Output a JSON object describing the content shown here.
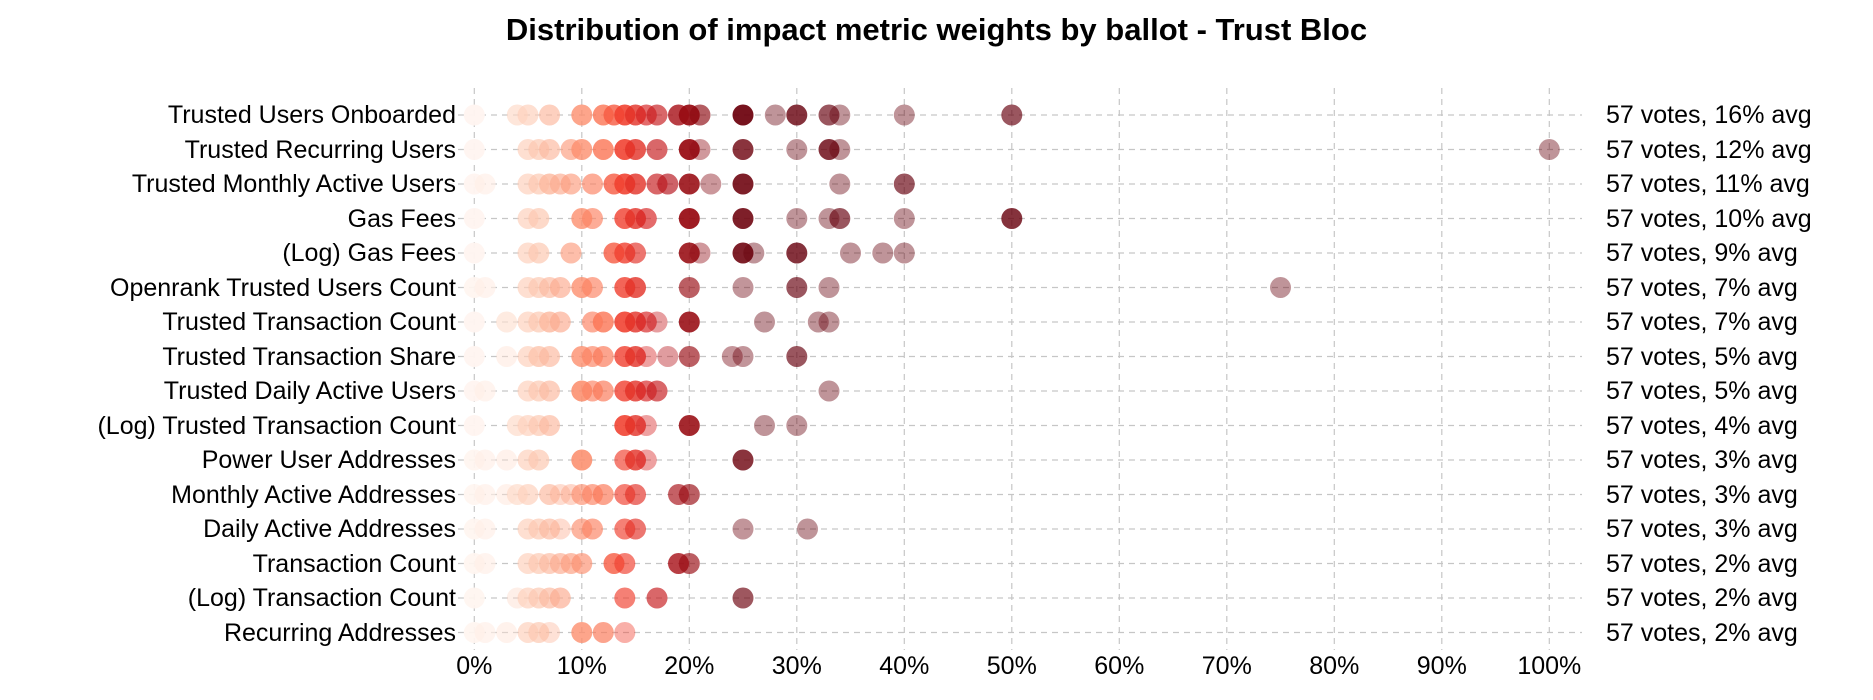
{
  "title": "Distribution of impact metric weights by ballot - Trust Bloc",
  "colors": {
    "background": "#ffffff",
    "grid": "#c6c6c6",
    "text": "#000000",
    "colormap_stops": [
      [
        0,
        "#fff5f0"
      ],
      [
        2,
        "#fee8dd"
      ],
      [
        4,
        "#fdd9c7"
      ],
      [
        6,
        "#fcc5ad"
      ],
      [
        8,
        "#fcab8f"
      ],
      [
        10,
        "#fc8f6f"
      ],
      [
        12,
        "#fb7555"
      ],
      [
        14,
        "#f0402f"
      ],
      [
        16,
        "#d6201f"
      ],
      [
        18,
        "#b5121b"
      ],
      [
        20,
        "#980c13"
      ],
      [
        23,
        "#7a0510"
      ],
      [
        26,
        "#67000d"
      ]
    ],
    "dot_base_alpha": 0.42
  },
  "chart_data": {
    "type": "scatter",
    "title": "Distribution of impact metric weights by ballot - Trust Bloc",
    "xlabel": "",
    "ylabel": "",
    "x_range": [
      0,
      100
    ],
    "x_tick_labels": [
      "0%",
      "10%",
      "20%",
      "30%",
      "40%",
      "50%",
      "60%",
      "70%",
      "80%",
      "90%",
      "100%"
    ],
    "x_tick_values": [
      0,
      10,
      20,
      30,
      40,
      50,
      60,
      70,
      80,
      90,
      100
    ],
    "grid": "dashed-both-axes",
    "legend_position": "none",
    "marker": "circle, color mapped to weight value (Reds), semi-transparent, overlapping stacks darken",
    "rows": [
      {
        "label": "Trusted Users Onboarded",
        "votes": 57,
        "avg_pct": 16,
        "annotation": "57 votes, 16% avg",
        "dots": [
          [
            0,
            6
          ],
          [
            4,
            2
          ],
          [
            5,
            2
          ],
          [
            7,
            2
          ],
          [
            10,
            3
          ],
          [
            12,
            3
          ],
          [
            13,
            3
          ],
          [
            14,
            4
          ],
          [
            15,
            3
          ],
          [
            16,
            2
          ],
          [
            17,
            2
          ],
          [
            19,
            3
          ],
          [
            20,
            5
          ],
          [
            21,
            2
          ],
          [
            25,
            5
          ],
          [
            28,
            1
          ],
          [
            30,
            3
          ],
          [
            33,
            2
          ],
          [
            34,
            1
          ],
          [
            40,
            1
          ],
          [
            50,
            2
          ]
        ]
      },
      {
        "label": "Trusted Recurring Users",
        "votes": 57,
        "avg_pct": 12,
        "annotation": "57 votes, 12% avg",
        "dots": [
          [
            0,
            6
          ],
          [
            5,
            2
          ],
          [
            6,
            2
          ],
          [
            7,
            2
          ],
          [
            9,
            2
          ],
          [
            10,
            3
          ],
          [
            12,
            3
          ],
          [
            14,
            4
          ],
          [
            15,
            3
          ],
          [
            17,
            2
          ],
          [
            20,
            5
          ],
          [
            21,
            1
          ],
          [
            25,
            3
          ],
          [
            30,
            1
          ],
          [
            33,
            3
          ],
          [
            34,
            1
          ],
          [
            100,
            1
          ]
        ]
      },
      {
        "label": "Trusted Monthly Active Users",
        "votes": 57,
        "avg_pct": 11,
        "annotation": "57 votes, 11% avg",
        "dots": [
          [
            0,
            6
          ],
          [
            1,
            2
          ],
          [
            5,
            2
          ],
          [
            6,
            2
          ],
          [
            7,
            3
          ],
          [
            8,
            2
          ],
          [
            9,
            2
          ],
          [
            11,
            2
          ],
          [
            13,
            3
          ],
          [
            14,
            4
          ],
          [
            15,
            3
          ],
          [
            17,
            2
          ],
          [
            18,
            2
          ],
          [
            20,
            4
          ],
          [
            22,
            1
          ],
          [
            25,
            4
          ],
          [
            34,
            1
          ],
          [
            40,
            2
          ]
        ]
      },
      {
        "label": "Gas Fees",
        "votes": 57,
        "avg_pct": 10,
        "annotation": "57 votes, 10% avg",
        "dots": [
          [
            0,
            6
          ],
          [
            5,
            2
          ],
          [
            6,
            2
          ],
          [
            10,
            3
          ],
          [
            11,
            2
          ],
          [
            14,
            3
          ],
          [
            15,
            3
          ],
          [
            16,
            2
          ],
          [
            20,
            5
          ],
          [
            25,
            4
          ],
          [
            30,
            1
          ],
          [
            33,
            1
          ],
          [
            34,
            2
          ],
          [
            40,
            1
          ],
          [
            50,
            3
          ]
        ]
      },
      {
        "label": "(Log) Gas Fees",
        "votes": 57,
        "avg_pct": 9,
        "annotation": "57 votes, 9% avg",
        "dots": [
          [
            0,
            6
          ],
          [
            5,
            2
          ],
          [
            6,
            2
          ],
          [
            9,
            2
          ],
          [
            13,
            3
          ],
          [
            14,
            3
          ],
          [
            15,
            2
          ],
          [
            20,
            4
          ],
          [
            21,
            1
          ],
          [
            25,
            4
          ],
          [
            26,
            1
          ],
          [
            30,
            3
          ],
          [
            35,
            1
          ],
          [
            38,
            1
          ],
          [
            40,
            1
          ]
        ]
      },
      {
        "label": "Openrank Trusted Users Count",
        "votes": 57,
        "avg_pct": 7,
        "annotation": "57 votes, 7% avg",
        "dots": [
          [
            0,
            5
          ],
          [
            1,
            2
          ],
          [
            5,
            2
          ],
          [
            6,
            2
          ],
          [
            7,
            2
          ],
          [
            8,
            2
          ],
          [
            10,
            3
          ],
          [
            11,
            2
          ],
          [
            14,
            3
          ],
          [
            15,
            3
          ],
          [
            20,
            2
          ],
          [
            25,
            1
          ],
          [
            30,
            2
          ],
          [
            33,
            1
          ],
          [
            75,
            1
          ]
        ]
      },
      {
        "label": "Trusted Transaction Count",
        "votes": 57,
        "avg_pct": 7,
        "annotation": "57 votes, 7% avg",
        "dots": [
          [
            0,
            6
          ],
          [
            3,
            2
          ],
          [
            5,
            2
          ],
          [
            6,
            2
          ],
          [
            7,
            3
          ],
          [
            8,
            2
          ],
          [
            11,
            2
          ],
          [
            12,
            3
          ],
          [
            14,
            4
          ],
          [
            15,
            3
          ],
          [
            16,
            2
          ],
          [
            17,
            1
          ],
          [
            20,
            4
          ],
          [
            27,
            1
          ],
          [
            32,
            1
          ],
          [
            33,
            1
          ]
        ]
      },
      {
        "label": "Trusted Transaction Share",
        "votes": 57,
        "avg_pct": 5,
        "annotation": "57 votes, 5% avg",
        "dots": [
          [
            0,
            6
          ],
          [
            3,
            1
          ],
          [
            5,
            2
          ],
          [
            6,
            3
          ],
          [
            7,
            2
          ],
          [
            10,
            3
          ],
          [
            11,
            2
          ],
          [
            12,
            2
          ],
          [
            14,
            3
          ],
          [
            15,
            3
          ],
          [
            16,
            1
          ],
          [
            18,
            1
          ],
          [
            20,
            2
          ],
          [
            24,
            1
          ],
          [
            25,
            1
          ],
          [
            30,
            2
          ]
        ]
      },
      {
        "label": "Trusted Daily Active Users",
        "votes": 57,
        "avg_pct": 5,
        "annotation": "57 votes, 5% avg",
        "dots": [
          [
            0,
            6
          ],
          [
            1,
            2
          ],
          [
            5,
            2
          ],
          [
            6,
            2
          ],
          [
            7,
            2
          ],
          [
            10,
            4
          ],
          [
            11,
            2
          ],
          [
            12,
            2
          ],
          [
            14,
            3
          ],
          [
            15,
            3
          ],
          [
            16,
            2
          ],
          [
            17,
            2
          ],
          [
            33,
            1
          ]
        ]
      },
      {
        "label": "(Log) Trusted Transaction Count",
        "votes": 57,
        "avg_pct": 4,
        "annotation": "57 votes, 4% avg",
        "dots": [
          [
            0,
            6
          ],
          [
            4,
            2
          ],
          [
            5,
            2
          ],
          [
            6,
            2
          ],
          [
            7,
            2
          ],
          [
            14,
            4
          ],
          [
            15,
            3
          ],
          [
            16,
            1
          ],
          [
            20,
            4
          ],
          [
            27,
            1
          ],
          [
            30,
            1
          ]
        ]
      },
      {
        "label": "Power User Addresses",
        "votes": 57,
        "avg_pct": 3,
        "annotation": "57 votes, 3% avg",
        "dots": [
          [
            0,
            5
          ],
          [
            1,
            2
          ],
          [
            3,
            1
          ],
          [
            5,
            2
          ],
          [
            6,
            2
          ],
          [
            10,
            4
          ],
          [
            14,
            2
          ],
          [
            15,
            3
          ],
          [
            16,
            1
          ],
          [
            25,
            3
          ]
        ]
      },
      {
        "label": "Monthly Active Addresses",
        "votes": 57,
        "avg_pct": 3,
        "annotation": "57 votes, 3% avg",
        "dots": [
          [
            0,
            5
          ],
          [
            1,
            2
          ],
          [
            3,
            1
          ],
          [
            4,
            2
          ],
          [
            5,
            2
          ],
          [
            7,
            2
          ],
          [
            8,
            1
          ],
          [
            9,
            1
          ],
          [
            10,
            2
          ],
          [
            11,
            2
          ],
          [
            12,
            2
          ],
          [
            14,
            2
          ],
          [
            15,
            2
          ],
          [
            19,
            2
          ],
          [
            20,
            2
          ]
        ]
      },
      {
        "label": "Daily Active Addresses",
        "votes": 57,
        "avg_pct": 3,
        "annotation": "57 votes, 3% avg",
        "dots": [
          [
            0,
            5
          ],
          [
            1,
            2
          ],
          [
            5,
            2
          ],
          [
            6,
            2
          ],
          [
            7,
            2
          ],
          [
            8,
            1
          ],
          [
            10,
            2
          ],
          [
            11,
            2
          ],
          [
            14,
            2
          ],
          [
            15,
            2
          ],
          [
            25,
            1
          ],
          [
            31,
            1
          ]
        ]
      },
      {
        "label": "Transaction Count",
        "votes": 57,
        "avg_pct": 2,
        "annotation": "57 votes, 2% avg",
        "dots": [
          [
            0,
            5
          ],
          [
            1,
            2
          ],
          [
            5,
            2
          ],
          [
            6,
            2
          ],
          [
            7,
            2
          ],
          [
            8,
            2
          ],
          [
            9,
            2
          ],
          [
            10,
            2
          ],
          [
            13,
            3
          ],
          [
            14,
            2
          ],
          [
            19,
            3
          ],
          [
            20,
            2
          ]
        ]
      },
      {
        "label": "(Log) Transaction Count",
        "votes": 57,
        "avg_pct": 2,
        "annotation": "57 votes, 2% avg",
        "dots": [
          [
            0,
            5
          ],
          [
            4,
            1
          ],
          [
            5,
            2
          ],
          [
            6,
            2
          ],
          [
            7,
            2
          ],
          [
            8,
            2
          ],
          [
            14,
            2
          ],
          [
            17,
            2
          ],
          [
            25,
            2
          ]
        ]
      },
      {
        "label": "Recurring Addresses",
        "votes": 57,
        "avg_pct": 2,
        "annotation": "57 votes, 2% avg",
        "dots": [
          [
            0,
            5
          ],
          [
            1,
            2
          ],
          [
            3,
            1
          ],
          [
            5,
            2
          ],
          [
            6,
            2
          ],
          [
            7,
            1
          ],
          [
            10,
            3
          ],
          [
            12,
            2
          ],
          [
            14,
            1
          ]
        ]
      }
    ]
  }
}
